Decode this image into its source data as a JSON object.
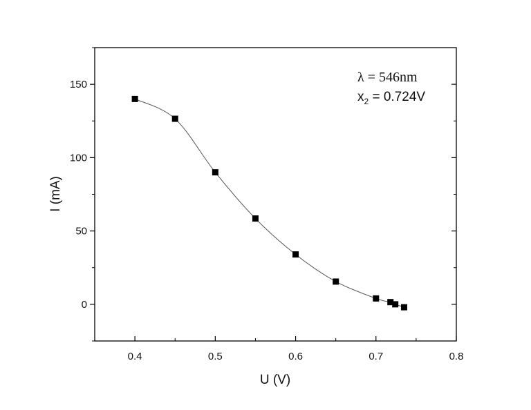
{
  "chart_data": {
    "type": "line",
    "title": "",
    "xlabel": "U (V)",
    "ylabel": "I (mA)",
    "xlim": [
      0.35,
      0.8
    ],
    "ylim": [
      -25,
      175
    ],
    "x_ticks": [
      0.4,
      0.5,
      0.6,
      0.7,
      0.8
    ],
    "x_tick_labels": [
      "0.4",
      "0.5",
      "0.6",
      "0.7",
      "0.8"
    ],
    "y_ticks": [
      0,
      50,
      100,
      150
    ],
    "y_tick_labels": [
      "0",
      "50",
      "100",
      "150"
    ],
    "grid": false,
    "marker": "square",
    "series": [
      {
        "x": [
          0.4,
          0.45,
          0.5,
          0.55,
          0.6,
          0.65,
          0.7,
          0.718,
          0.724,
          0.735
        ],
        "y": [
          140,
          126.5,
          90,
          58.5,
          34,
          15.5,
          4,
          1.5,
          0,
          -2
        ]
      }
    ],
    "annotations": {
      "wavelength": {
        "symbol": "λ",
        "text": " = 546nm"
      },
      "x2": {
        "base": "x",
        "sub": "2",
        "text": " = 0.724V"
      }
    },
    "colors": {
      "line": "#555555",
      "marker": "#000000",
      "axis": "#000000"
    }
  }
}
